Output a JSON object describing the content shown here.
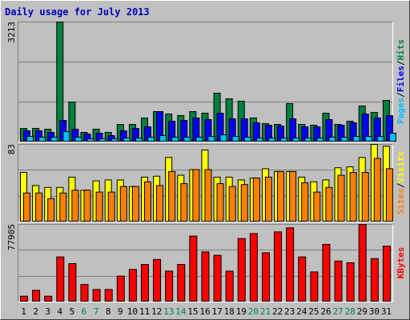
{
  "title": "Daily usage for July 2013",
  "legend_separator": "/",
  "chart_data": [
    {
      "type": "bar",
      "ylim": [
        0,
        3213
      ],
      "yticks": [
        3213
      ],
      "grid_divisions": 3,
      "series": [
        {
          "name": "Hits",
          "color": "#008040",
          "values": [
            364,
            364,
            343,
            3213,
            1071,
            257,
            343,
            257,
            471,
            471,
            643,
            814,
            750,
            707,
            814,
            771,
            1307,
            1157,
            1093,
            643,
            493,
            471,
            1028,
            471,
            450,
            771,
            471,
            557,
            964,
            793,
            1114
          ]
        },
        {
          "name": "Files",
          "color": "#0000ff",
          "values": [
            300,
            300,
            257,
            578,
            343,
            214,
            236,
            171,
            300,
            364,
            407,
            814,
            557,
            578,
            643,
            600,
            771,
            621,
            621,
            514,
            450,
            428,
            621,
            407,
            407,
            600,
            450,
            514,
            750,
            643,
            707
          ]
        },
        {
          "name": "Pages",
          "color": "#00c0ff",
          "values": [
            150,
            128,
            128,
            278,
            128,
            86,
            86,
            86,
            107,
            107,
            128,
            171,
            128,
            128,
            128,
            150,
            193,
            150,
            128,
            107,
            107,
            107,
            107,
            107,
            107,
            128,
            128,
            150,
            150,
            150,
            236
          ]
        }
      ]
    },
    {
      "type": "bar",
      "ylim": [
        0,
        83
      ],
      "yticks": [
        83
      ],
      "grid_divisions": 3,
      "series": [
        {
          "name": "Visits",
          "color": "#ffff00",
          "values": [
            53,
            39,
            37,
            37,
            48,
            34,
            44,
            45,
            45,
            38,
            48,
            49,
            69,
            50,
            56,
            77,
            48,
            48,
            45,
            47,
            57,
            54,
            54,
            48,
            43,
            45,
            58,
            59,
            69,
            83,
            81
          ]
        },
        {
          "name": "Sites",
          "color": "#ff8000",
          "values": [
            31,
            31,
            25,
            31,
            34,
            34,
            32,
            32,
            38,
            38,
            43,
            39,
            54,
            41,
            56,
            56,
            41,
            38,
            40,
            47,
            48,
            54,
            54,
            42,
            32,
            37,
            50,
            53,
            53,
            68,
            57
          ]
        }
      ]
    },
    {
      "type": "bar",
      "ylim": [
        0,
        77905
      ],
      "yticks": [
        77905
      ],
      "grid_divisions": 3,
      "categories": [
        "1",
        "2",
        "3",
        "4",
        "5",
        "6",
        "7",
        "8",
        "9",
        "10",
        "11",
        "12",
        "13",
        "14",
        "15",
        "16",
        "17",
        "18",
        "19",
        "20",
        "21",
        "22",
        "23",
        "24",
        "25",
        "26",
        "27",
        "28",
        "29",
        "30",
        "31"
      ],
      "category_colors": [
        "#000000",
        "#000000",
        "#000000",
        "#000000",
        "#000000",
        "#00805c",
        "#00805c",
        "#000000",
        "#000000",
        "#000000",
        "#000000",
        "#000000",
        "#00805c",
        "#00805c",
        "#000000",
        "#000000",
        "#000000",
        "#000000",
        "#000000",
        "#00805c",
        "#00805c",
        "#000000",
        "#000000",
        "#000000",
        "#000000",
        "#000000",
        "#00805c",
        "#00805c",
        "#000000",
        "#000000",
        "#000000"
      ],
      "series": [
        {
          "name": "KBytes",
          "color": "#ff0000",
          "values": [
            5866,
            11731,
            5866,
            45250,
            38546,
            17597,
            12569,
            12569,
            25977,
            32681,
            37708,
            42736,
            31000,
            37708,
            66200,
            50300,
            46900,
            31000,
            63700,
            68700,
            49400,
            70400,
            74500,
            45250,
            30200,
            57800,
            41100,
            39400,
            77905,
            43600,
            56100
          ]
        }
      ]
    }
  ]
}
